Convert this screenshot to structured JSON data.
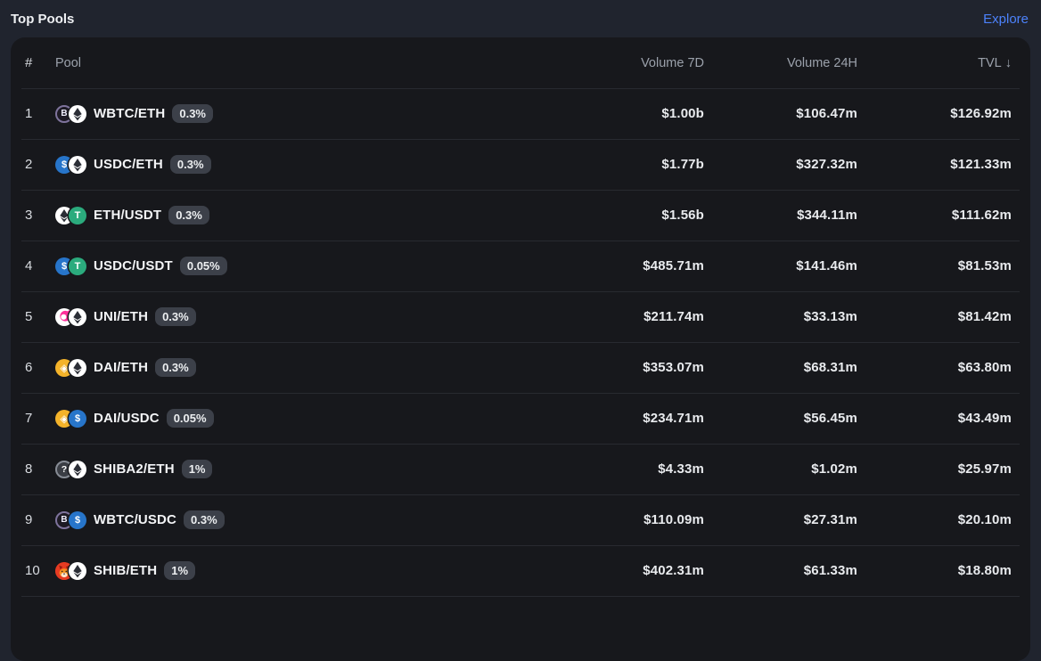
{
  "page": {
    "title": "Top Pools",
    "explore_label": "Explore"
  },
  "colors": {
    "page_background": "#20242e",
    "card_background": "#17181c",
    "separator": "#282a30",
    "accent_blue": "#4c82fb",
    "header_text": "#9ba1ab",
    "primary_text": "#eef0f3",
    "badge_background": "#3c4049",
    "badge_text": "#eceef0"
  },
  "token_colors": {
    "WBTC_ring": "#7e739c",
    "ETH": "#ffffff",
    "USDC": "#2775ca",
    "USDT": "#2bab7d",
    "DAI": "#f4b32a",
    "UNI": "#ff2f9a",
    "SHIB": "#e63b22",
    "UNKNOWN": "#3a3d44"
  },
  "table": {
    "sorted_by": "TVL",
    "sort_direction": "descending",
    "columns": {
      "rank": "#",
      "pool": "Pool",
      "volume_7d": "Volume 7D",
      "volume_24h": "Volume 24H",
      "tvl": "TVL",
      "tvl_sort_arrow": "↓"
    },
    "rows": [
      {
        "rank": "1",
        "tokens": [
          "WBTC",
          "ETH"
        ],
        "pair": "WBTC/ETH",
        "fee": "0.3%",
        "volume_7d": "$1.00b",
        "volume_24h": "$106.47m",
        "tvl": "$126.92m"
      },
      {
        "rank": "2",
        "tokens": [
          "USDC",
          "ETH"
        ],
        "pair": "USDC/ETH",
        "fee": "0.3%",
        "volume_7d": "$1.77b",
        "volume_24h": "$327.32m",
        "tvl": "$121.33m"
      },
      {
        "rank": "3",
        "tokens": [
          "ETH",
          "USDT"
        ],
        "pair": "ETH/USDT",
        "fee": "0.3%",
        "volume_7d": "$1.56b",
        "volume_24h": "$344.11m",
        "tvl": "$111.62m"
      },
      {
        "rank": "4",
        "tokens": [
          "USDC",
          "USDT"
        ],
        "pair": "USDC/USDT",
        "fee": "0.05%",
        "volume_7d": "$485.71m",
        "volume_24h": "$141.46m",
        "tvl": "$81.53m"
      },
      {
        "rank": "5",
        "tokens": [
          "UNI",
          "ETH"
        ],
        "pair": "UNI/ETH",
        "fee": "0.3%",
        "volume_7d": "$211.74m",
        "volume_24h": "$33.13m",
        "tvl": "$81.42m"
      },
      {
        "rank": "6",
        "tokens": [
          "DAI",
          "ETH"
        ],
        "pair": "DAI/ETH",
        "fee": "0.3%",
        "volume_7d": "$353.07m",
        "volume_24h": "$68.31m",
        "tvl": "$63.80m"
      },
      {
        "rank": "7",
        "tokens": [
          "DAI",
          "USDC"
        ],
        "pair": "DAI/USDC",
        "fee": "0.05%",
        "volume_7d": "$234.71m",
        "volume_24h": "$56.45m",
        "tvl": "$43.49m"
      },
      {
        "rank": "8",
        "tokens": [
          "SHIBA2",
          "ETH"
        ],
        "pair": "SHIBA2/ETH",
        "fee": "1%",
        "volume_7d": "$4.33m",
        "volume_24h": "$1.02m",
        "tvl": "$25.97m"
      },
      {
        "rank": "9",
        "tokens": [
          "WBTC",
          "USDC"
        ],
        "pair": "WBTC/USDC",
        "fee": "0.3%",
        "volume_7d": "$110.09m",
        "volume_24h": "$27.31m",
        "tvl": "$20.10m"
      },
      {
        "rank": "10",
        "tokens": [
          "SHIB",
          "ETH"
        ],
        "pair": "SHIB/ETH",
        "fee": "1%",
        "volume_7d": "$402.31m",
        "volume_24h": "$61.33m",
        "tvl": "$18.80m"
      }
    ]
  }
}
